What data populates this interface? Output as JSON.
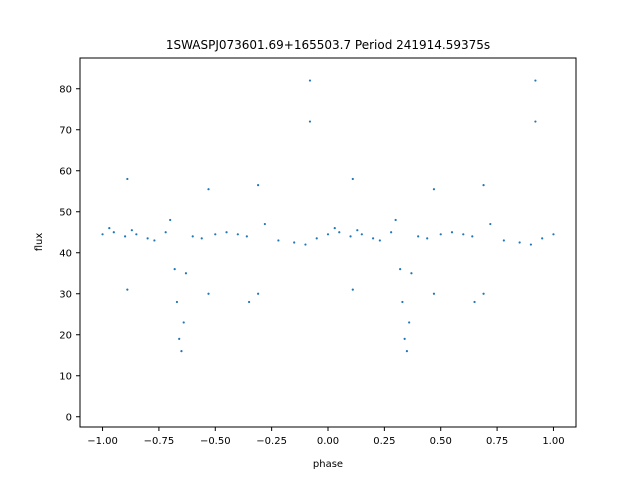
{
  "chart_data": {
    "type": "scatter",
    "title": "1SWASPJ073601.69+165503.7 Period 241914.59375s",
    "xlabel": "phase",
    "ylabel": "flux",
    "xlim": [
      -1.1,
      1.1
    ],
    "ylim": [
      -2.5,
      87.5
    ],
    "x_ticks": [
      -1.0,
      -0.75,
      -0.5,
      -0.25,
      0.0,
      0.25,
      0.5,
      0.75,
      1.0
    ],
    "x_tick_labels": [
      "−1.00",
      "−0.75",
      "−0.50",
      "−0.25",
      "0.00",
      "0.25",
      "0.50",
      "0.75",
      "1.00"
    ],
    "y_ticks": [
      0,
      10,
      20,
      30,
      40,
      50,
      60,
      70,
      80
    ],
    "y_tick_labels": [
      "0",
      "10",
      "20",
      "30",
      "40",
      "50",
      "60",
      "70",
      "80"
    ],
    "grid": false,
    "legend": false,
    "marker_color": "#1f77b4",
    "series": [
      {
        "points": [
          [
            -1.0,
            44.5
          ],
          [
            -0.97,
            46.0
          ],
          [
            -0.95,
            45.0
          ],
          [
            -0.9,
            44.0
          ],
          [
            -0.89,
            58.0
          ],
          [
            -0.89,
            31.0
          ],
          [
            -0.87,
            45.5
          ],
          [
            -0.85,
            44.5
          ],
          [
            -0.8,
            43.5
          ],
          [
            -0.77,
            43.0
          ],
          [
            -0.72,
            45.0
          ],
          [
            -0.7,
            48.0
          ],
          [
            -0.68,
            36.0
          ],
          [
            -0.67,
            28.0
          ],
          [
            -0.66,
            19.0
          ],
          [
            -0.65,
            16.0
          ],
          [
            -0.64,
            23.0
          ],
          [
            -0.63,
            35.0
          ],
          [
            -0.6,
            44.0
          ],
          [
            -0.56,
            43.5
          ],
          [
            -0.53,
            55.5
          ],
          [
            -0.53,
            30.0
          ],
          [
            -0.5,
            44.5
          ],
          [
            -0.45,
            45.0
          ],
          [
            -0.4,
            44.5
          ],
          [
            -0.36,
            44.0
          ],
          [
            -0.35,
            28.0
          ],
          [
            -0.31,
            56.5
          ],
          [
            -0.31,
            30.0
          ],
          [
            -0.28,
            47.0
          ],
          [
            -0.22,
            43.0
          ],
          [
            -0.15,
            42.5
          ],
          [
            -0.1,
            42.0
          ],
          [
            -0.08,
            82.0
          ],
          [
            -0.08,
            72.0
          ],
          [
            -0.05,
            43.5
          ],
          [
            0.0,
            44.5
          ],
          [
            0.03,
            46.0
          ],
          [
            0.05,
            45.0
          ],
          [
            0.1,
            44.0
          ],
          [
            0.11,
            58.0
          ],
          [
            0.11,
            31.0
          ],
          [
            0.13,
            45.5
          ],
          [
            0.15,
            44.5
          ],
          [
            0.2,
            43.5
          ],
          [
            0.23,
            43.0
          ],
          [
            0.28,
            45.0
          ],
          [
            0.3,
            48.0
          ],
          [
            0.32,
            36.0
          ],
          [
            0.33,
            28.0
          ],
          [
            0.34,
            19.0
          ],
          [
            0.35,
            16.0
          ],
          [
            0.36,
            23.0
          ],
          [
            0.37,
            35.0
          ],
          [
            0.4,
            44.0
          ],
          [
            0.44,
            43.5
          ],
          [
            0.47,
            55.5
          ],
          [
            0.47,
            30.0
          ],
          [
            0.5,
            44.5
          ],
          [
            0.55,
            45.0
          ],
          [
            0.6,
            44.5
          ],
          [
            0.64,
            44.0
          ],
          [
            0.65,
            28.0
          ],
          [
            0.69,
            56.5
          ],
          [
            0.69,
            30.0
          ],
          [
            0.72,
            47.0
          ],
          [
            0.78,
            43.0
          ],
          [
            0.85,
            42.5
          ],
          [
            0.9,
            42.0
          ],
          [
            0.92,
            82.0
          ],
          [
            0.92,
            72.0
          ],
          [
            0.95,
            43.5
          ],
          [
            1.0,
            44.5
          ]
        ]
      }
    ]
  }
}
